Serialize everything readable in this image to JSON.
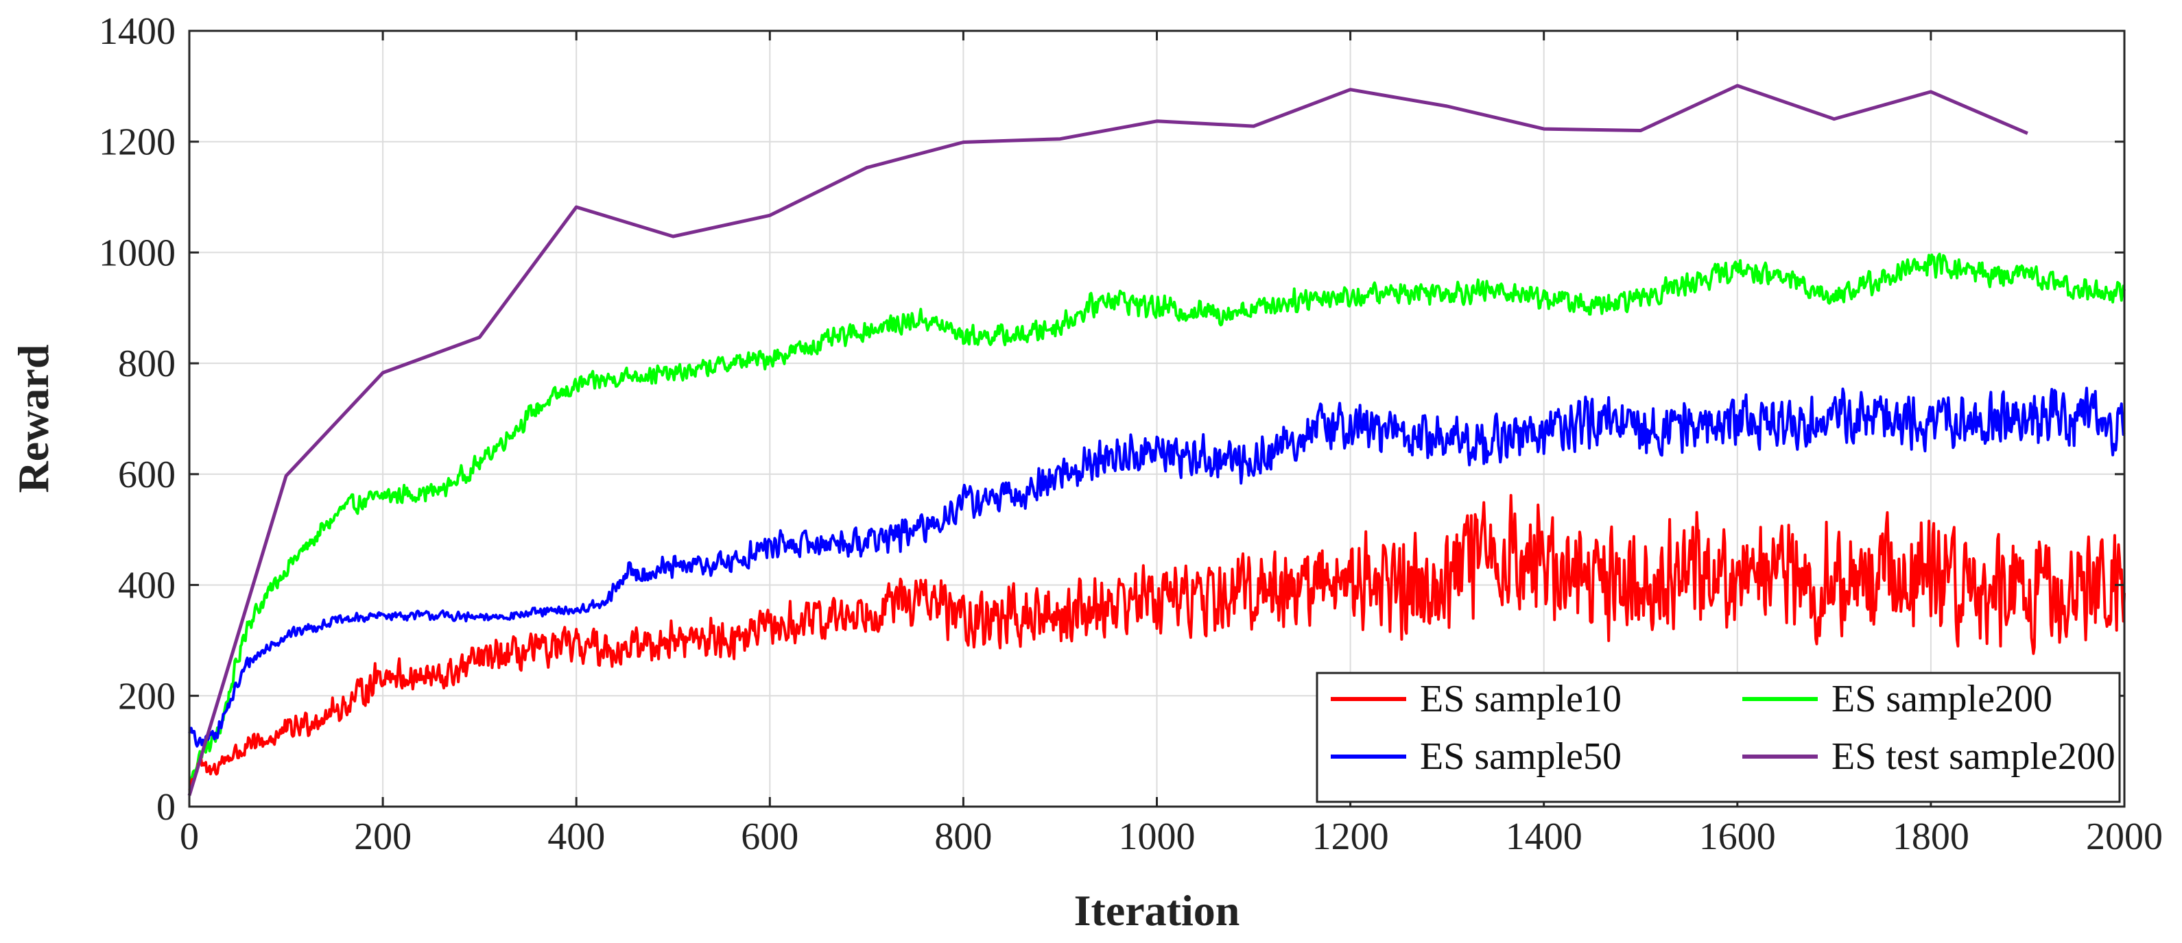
{
  "chart_data": {
    "type": "line",
    "title": "",
    "xlabel": "Iteration",
    "ylabel": "Reward",
    "xlim": [
      0,
      2000
    ],
    "ylim": [
      0,
      1400
    ],
    "xticks": [
      0,
      200,
      400,
      600,
      800,
      1000,
      1200,
      1400,
      1600,
      1800,
      2000
    ],
    "yticks": [
      0,
      200,
      400,
      600,
      800,
      1000,
      1200,
      1400
    ],
    "grid": true,
    "legend_position": "bottom-right",
    "series": [
      {
        "name": "ES sample10",
        "color": "#ff0000",
        "noisy": true,
        "x": [
          0,
          10,
          20,
          40,
          80,
          120,
          160,
          200,
          260,
          300,
          360,
          400,
          440,
          500,
          560,
          600,
          680,
          720,
          760,
          800,
          880,
          940,
          1000,
          1060,
          1100,
          1160,
          1200,
          1260,
          1300,
          1350,
          1400,
          1460,
          1500,
          1560,
          1600,
          1660,
          1700,
          1760,
          1800,
          1860,
          1900,
          1960,
          2000
        ],
        "values": [
          30,
          80,
          60,
          90,
          120,
          150,
          180,
          240,
          230,
          265,
          280,
          290,
          285,
          300,
          305,
          320,
          345,
          365,
          375,
          340,
          340,
          365,
          380,
          370,
          395,
          400,
          420,
          395,
          415,
          460,
          440,
          415,
          405,
          430,
          425,
          415,
          400,
          430,
          410,
          390,
          380,
          390,
          410
        ],
        "amp": [
          10,
          20,
          20,
          22,
          25,
          28,
          30,
          35,
          35,
          35,
          38,
          40,
          40,
          40,
          42,
          45,
          48,
          50,
          55,
          60,
          65,
          70,
          75,
          80,
          85,
          95,
          110,
          110,
          115,
          120,
          120,
          120,
          115,
          115,
          115,
          115,
          120,
          120,
          115,
          115,
          110,
          110,
          110
        ]
      },
      {
        "name": "ES sample50",
        "color": "#0000ff",
        "noisy": true,
        "x": [
          0,
          10,
          30,
          60,
          100,
          150,
          200,
          260,
          300,
          360,
          400,
          430,
          450,
          500,
          560,
          600,
          700,
          760,
          800,
          860,
          900,
          950,
          1000,
          1050,
          1100,
          1160,
          1200,
          1260,
          1300,
          1360,
          1400,
          1460,
          1500,
          1560,
          1600,
          1660,
          1700,
          1760,
          1800,
          1860,
          1900,
          1960,
          2000
        ],
        "values": [
          140,
          110,
          140,
          260,
          310,
          335,
          345,
          345,
          340,
          350,
          355,
          365,
          420,
          430,
          440,
          470,
          480,
          500,
          550,
          560,
          600,
          630,
          640,
          630,
          620,
          680,
          690,
          670,
          660,
          660,
          680,
          690,
          680,
          690,
          700,
          690,
          710,
          690,
          690,
          700,
          700,
          700,
          680
        ],
        "amp": [
          15,
          15,
          15,
          15,
          12,
          10,
          10,
          10,
          10,
          10,
          12,
          15,
          25,
          25,
          28,
          30,
          30,
          35,
          35,
          35,
          40,
          42,
          45,
          45,
          45,
          50,
          50,
          50,
          55,
          55,
          55,
          55,
          55,
          55,
          55,
          55,
          55,
          55,
          55,
          55,
          55,
          60,
          60
        ]
      },
      {
        "name": "ES sample200",
        "color": "#00ff00",
        "noisy": true,
        "x": [
          0,
          10,
          30,
          60,
          100,
          160,
          200,
          260,
          300,
          360,
          400,
          460,
          500,
          560,
          600,
          660,
          700,
          760,
          800,
          860,
          900,
          950,
          1000,
          1060,
          1100,
          1160,
          1200,
          1260,
          1300,
          1360,
          1400,
          1460,
          1500,
          1560,
          1600,
          1660,
          1700,
          1760,
          1800,
          1860,
          1900,
          1960,
          2000
        ],
        "values": [
          40,
          90,
          130,
          330,
          430,
          540,
          560,
          570,
          620,
          720,
          760,
          780,
          780,
          800,
          810,
          840,
          860,
          880,
          850,
          850,
          870,
          920,
          900,
          890,
          900,
          920,
          920,
          930,
          930,
          930,
          920,
          900,
          920,
          950,
          970,
          950,
          920,
          960,
          980,
          960,
          960,
          930,
          930
        ],
        "amp": [
          10,
          15,
          20,
          20,
          20,
          20,
          20,
          20,
          20,
          20,
          20,
          20,
          20,
          20,
          22,
          22,
          22,
          22,
          22,
          22,
          25,
          25,
          25,
          25,
          25,
          25,
          25,
          25,
          25,
          25,
          25,
          25,
          25,
          25,
          25,
          25,
          25,
          25,
          25,
          25,
          25,
          25,
          25
        ]
      },
      {
        "name": "ES test sample200",
        "color": "#7b2d8e",
        "noisy": false,
        "x": [
          0,
          100,
          200,
          300,
          400,
          500,
          600,
          700,
          800,
          900,
          1000,
          1100,
          1200,
          1300,
          1400,
          1500,
          1600,
          1700,
          1800,
          1900
        ],
        "values": [
          20,
          597,
          783,
          847,
          1082,
          1029,
          1067,
          1153,
          1199,
          1205,
          1237,
          1228,
          1294,
          1264,
          1223,
          1220,
          1301,
          1241,
          1290,
          1215
        ]
      }
    ],
    "legend_order": [
      "ES sample10",
      "ES sample200",
      "ES sample50",
      "ES test sample200"
    ]
  }
}
